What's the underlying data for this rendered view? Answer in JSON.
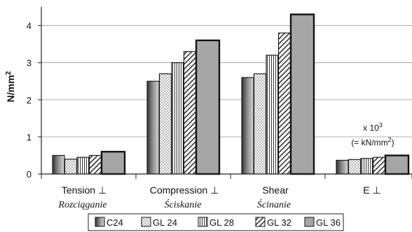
{
  "chart_data": {
    "type": "bar",
    "ylabel": "N/mm",
    "ylabel_sup": "2",
    "ylim": [
      0,
      4.5
    ],
    "yticks": [
      {
        "value": 0,
        "label": "0"
      },
      {
        "value": 1,
        "label": "1"
      },
      {
        "value": 2,
        "label": "2"
      },
      {
        "value": 3,
        "label": "3"
      },
      {
        "value": 4,
        "label": "4"
      }
    ],
    "grid": true,
    "categories": [
      {
        "label": "Tension ⊥",
        "sublabel": "Rozciąganie"
      },
      {
        "label": "Compression ⊥",
        "sublabel": "Ściskanie"
      },
      {
        "label": "Shear",
        "sublabel": "Ścinanie"
      },
      {
        "label": "E ⊥",
        "sublabel": ""
      }
    ],
    "series": [
      {
        "name": "C24",
        "pattern": "gradient-dark",
        "values": [
          0.5,
          2.5,
          2.6,
          0.37
        ]
      },
      {
        "name": "GL 24",
        "pattern": "dots",
        "values": [
          0.4,
          2.7,
          2.7,
          0.39
        ]
      },
      {
        "name": "GL 28",
        "pattern": "vertical-lines",
        "values": [
          0.45,
          3.0,
          3.2,
          0.42
        ]
      },
      {
        "name": "GL 32",
        "pattern": "diagonal-hatch",
        "values": [
          0.5,
          3.3,
          3.8,
          0.45
        ]
      },
      {
        "name": "GL 36",
        "pattern": "solid-grey",
        "values": [
          0.6,
          3.6,
          4.3,
          0.5
        ]
      }
    ],
    "annotation": {
      "line1": "x 10",
      "line1_sup": "3",
      "line2_pre": "(= kN/mm",
      "line2_sup": "2",
      "line2_post": ")"
    },
    "legend_position": "bottom"
  }
}
